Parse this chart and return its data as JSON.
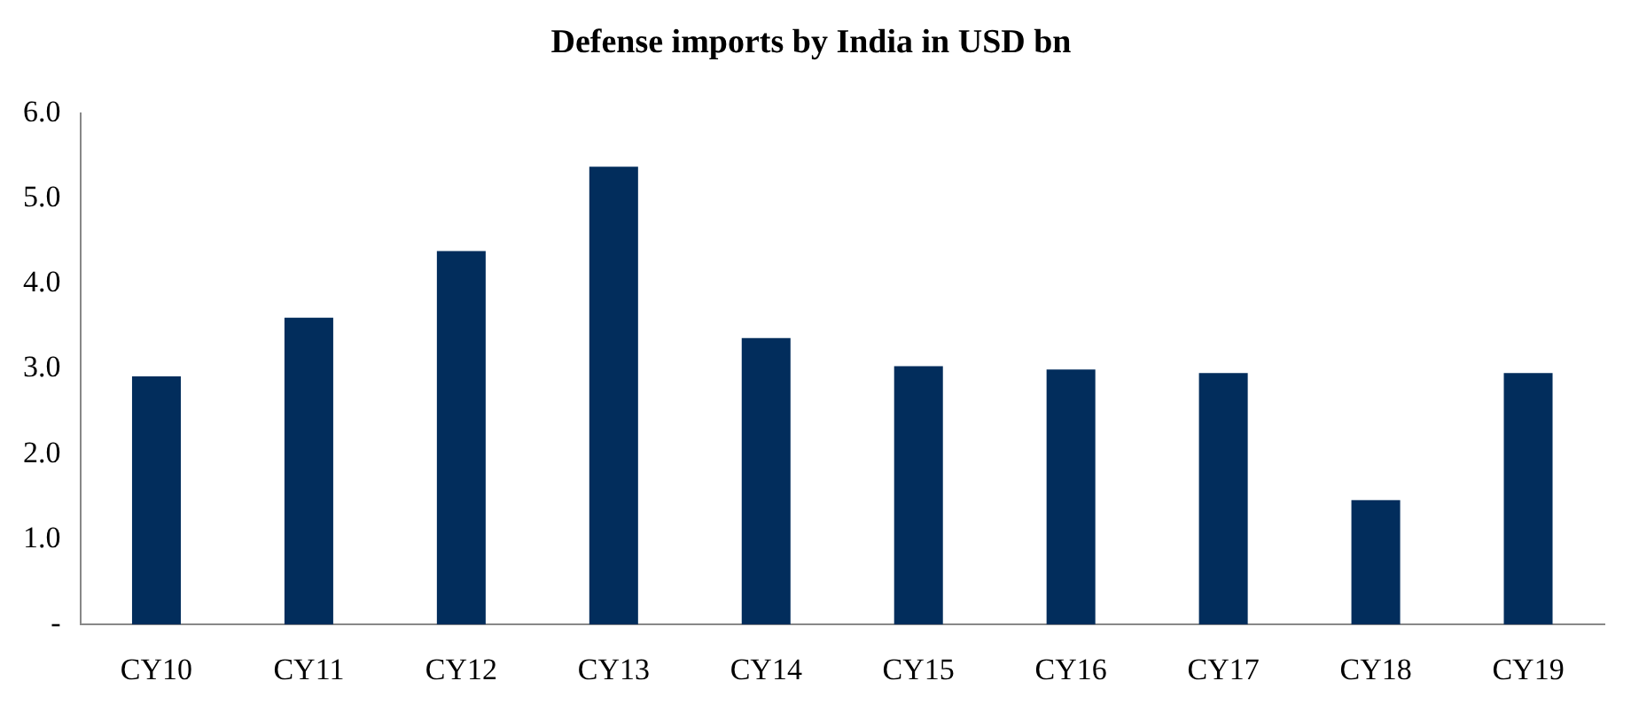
{
  "chart_data": {
    "type": "bar",
    "title": "Defense imports by India in USD bn",
    "categories": [
      "CY10",
      "CY11",
      "CY12",
      "CY13",
      "CY14",
      "CY15",
      "CY16",
      "CY17",
      "CY18",
      "CY19"
    ],
    "values": [
      2.91,
      3.6,
      4.38,
      5.37,
      3.36,
      3.03,
      2.99,
      2.95,
      1.46,
      2.95
    ],
    "color": "#022d5c",
    "ylim": [
      0,
      6
    ],
    "yticks": [
      {
        "value": 0,
        "label": "-"
      },
      {
        "value": 1,
        "label": "1.0"
      },
      {
        "value": 2,
        "label": "2.0"
      },
      {
        "value": 3,
        "label": "3.0"
      },
      {
        "value": 4,
        "label": "4.0"
      },
      {
        "value": 5,
        "label": "5.0"
      },
      {
        "value": 6,
        "label": "6.0"
      }
    ],
    "grid": false,
    "legend": false
  }
}
